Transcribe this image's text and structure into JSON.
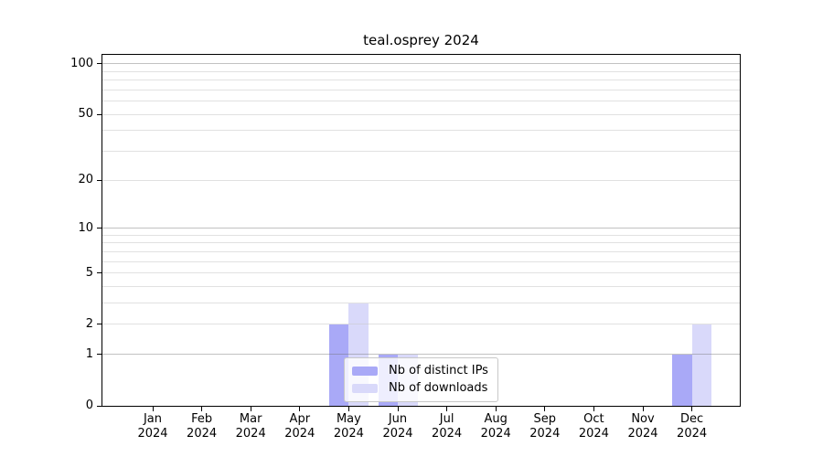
{
  "chart_data": {
    "type": "bar",
    "title": "teal.osprey 2024",
    "categories": [
      "Jan",
      "Feb",
      "Mar",
      "Apr",
      "May",
      "Jun",
      "Jul",
      "Aug",
      "Sep",
      "Oct",
      "Nov",
      "Dec"
    ],
    "year": "2024",
    "series": [
      {
        "name": "Nb of distinct IPs",
        "key": "distinct-ips",
        "color": "#a9a9f7",
        "values": [
          0,
          0,
          0,
          0,
          2,
          1,
          0,
          0,
          0,
          0,
          0,
          1
        ]
      },
      {
        "name": "Nb of downloads",
        "key": "downloads",
        "color": "#d9d9fa",
        "values": [
          0,
          0,
          0,
          0,
          3,
          1,
          0,
          0,
          0,
          0,
          0,
          2
        ]
      }
    ],
    "yscale": "log1p",
    "ylim": [
      0,
      113
    ],
    "yticks": [
      0,
      1,
      2,
      5,
      10,
      20,
      50,
      100
    ],
    "minor_yticks": [
      3,
      4,
      6,
      7,
      8,
      9,
      30,
      40,
      60,
      70,
      80,
      90
    ],
    "major_grid_values": [
      1,
      10,
      100
    ],
    "grid": "horizontal",
    "legend_position": "lower-center",
    "colors": {
      "axis": "#000000",
      "major_grid": "#b5b5b5",
      "minor_grid": "#e4e4e4",
      "background": "#ffffff"
    }
  }
}
